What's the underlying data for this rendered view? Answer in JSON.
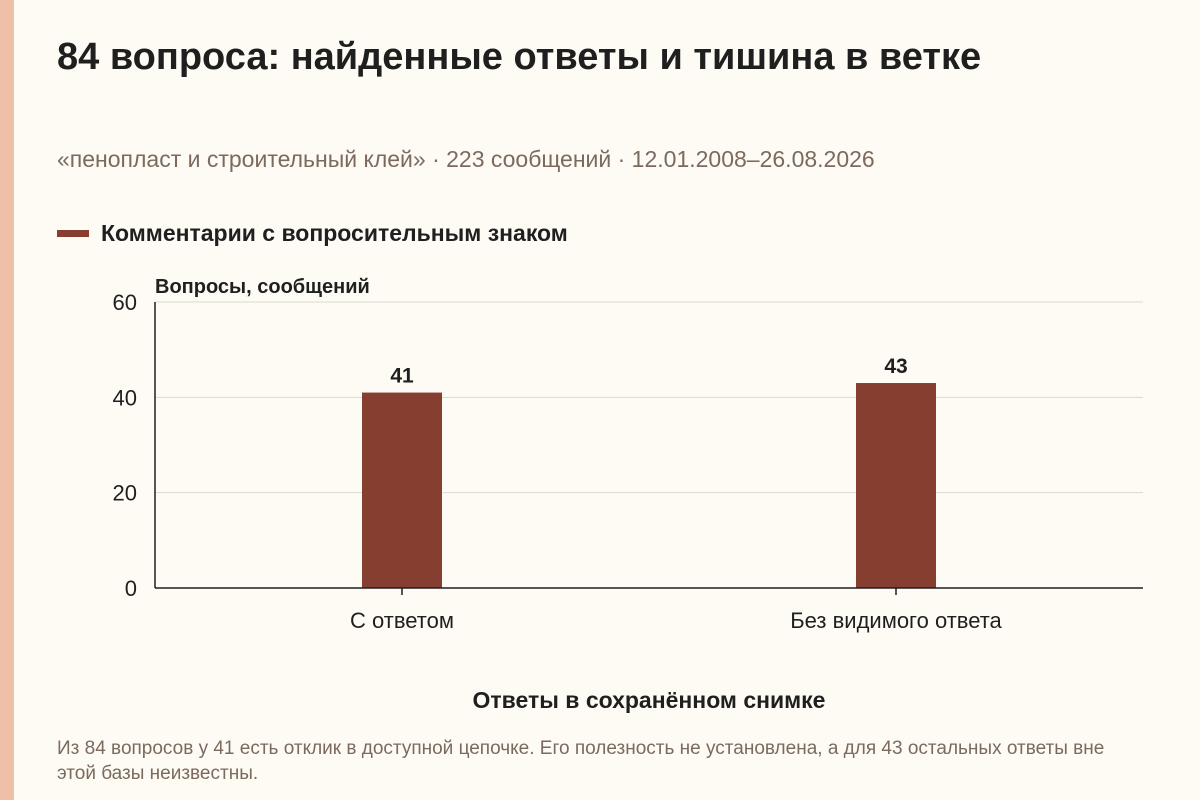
{
  "title": "84 вопроса: найденные ответы и тишина в ветке",
  "subtitle": "«пенопласт и строительный клей» · 223 сообщений · 12.01.2008–26.08.2026",
  "note": "Из 84 вопросов у 41 есть отклик в доступной цепочке. Его полезность не установлена, а для 43 остальных ответы вне этой базы неизвестны.",
  "colors": {
    "bar": "#853e2f",
    "grid": "#dcd9d2",
    "axis": "#1f1f1f",
    "accent": "#efc0a7"
  },
  "chart_data": {
    "type": "bar",
    "categories": [
      "С ответом",
      "Без видимого ответа"
    ],
    "series": [
      {
        "name": "Комментарии с вопросительным знаком",
        "values": [
          41,
          43
        ]
      }
    ],
    "data_labels": [
      "41",
      "43"
    ],
    "ylabel": "Вопросы, сообщений",
    "xlabel": "Ответы в сохранённом снимке",
    "ylim": [
      0,
      60
    ],
    "yticks": [
      0,
      20,
      40,
      60
    ],
    "grid": true,
    "legend": "top-left"
  }
}
